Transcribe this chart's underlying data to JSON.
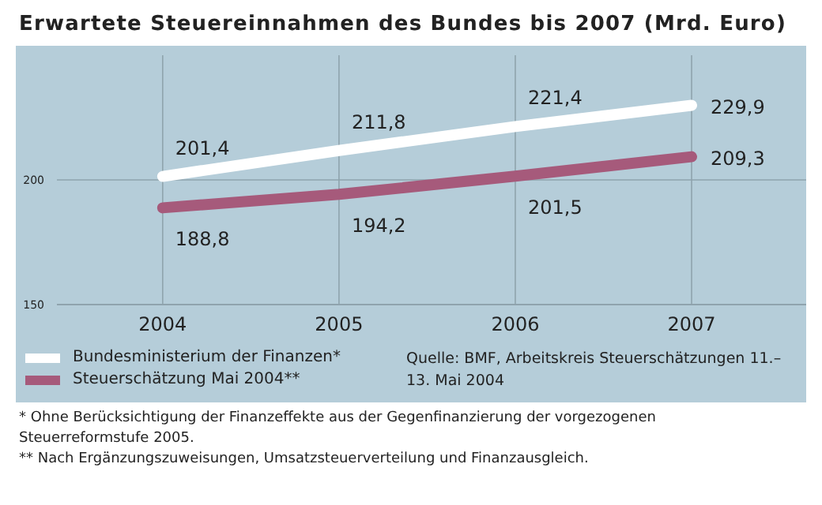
{
  "chart_data": {
    "type": "line",
    "title": "Erwartete Steuereinnahmen des Bundes bis 2007 (Mrd. Euro)",
    "categories": [
      "2004",
      "2005",
      "2006",
      "2007"
    ],
    "series": [
      {
        "name": "Bundesministerium der Finanzen*",
        "color": "#ffffff",
        "values": [
          201.4,
          211.8,
          221.4,
          229.9
        ],
        "value_labels": [
          "201,4",
          "211,8",
          "221,4",
          "229,9"
        ]
      },
      {
        "name": "Steuerschätzung Mai 2004**",
        "color": "#a65a7b",
        "values": [
          188.8,
          194.2,
          201.5,
          209.3
        ],
        "value_labels": [
          "188,8",
          "194,2",
          "201,5",
          "209,3"
        ]
      }
    ],
    "ylim": [
      150,
      250
    ],
    "yticks": [
      150,
      200
    ],
    "grid": true,
    "legend": "bottom left",
    "marker": "none",
    "line_style": "solid",
    "annotations": [
      "Quelle: BMF, Arbeitskreis Steuerschätzungen 11.–13. Mai 2004",
      "* Ohne Berücksichtigung der Finanzeffekte aus der Gegenfinanzierung der vorgezogenen Steuerreformstufe 2005.",
      "** Nach Ergänzungszuweisungen, Umsatzsteuerverteilung und Finanzausgleich."
    ]
  }
}
